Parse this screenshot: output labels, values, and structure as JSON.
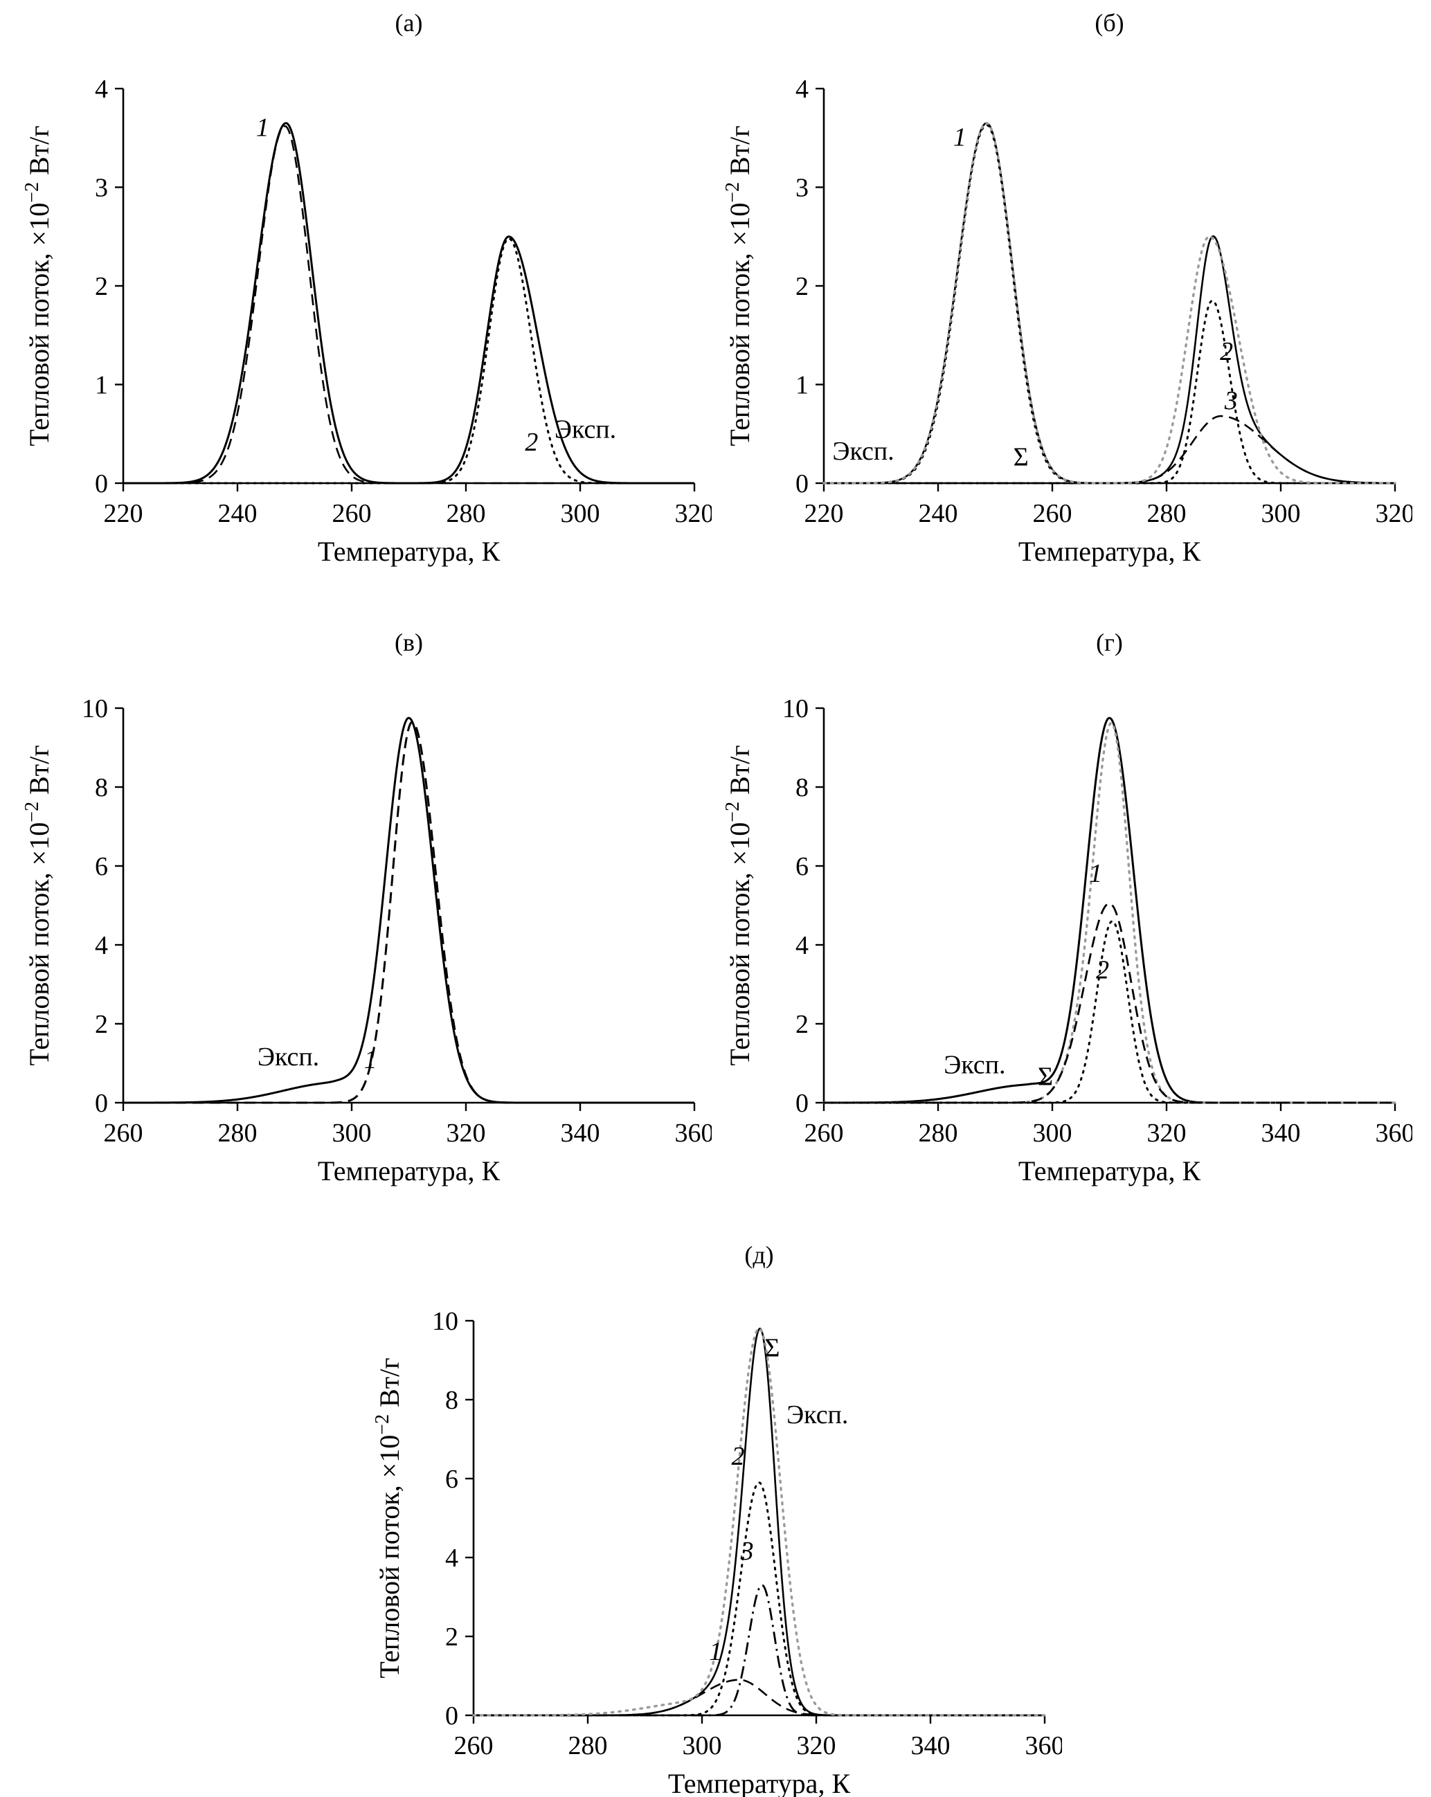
{
  "figure": {
    "background": "#ffffff",
    "curve_color": "#000000",
    "experimental_overlay_color": "#9a9a9a"
  },
  "chart_data": [
    {
      "id": "a",
      "panel_label": "(а)",
      "type": "line",
      "xlabel": "Температура, К",
      "ylabel": "Тепловой поток, ×10⁻² Вт/г",
      "xlim": [
        220,
        320
      ],
      "ylim": [
        0,
        4
      ],
      "xticks": [
        220,
        240,
        260,
        280,
        300,
        320
      ],
      "yticks": [
        0,
        1,
        2,
        3,
        4
      ],
      "series": [
        {
          "name": "Эксп.",
          "style": "solid",
          "color": "#000000",
          "width": 3,
          "peaks": [
            {
              "center": 248.5,
              "height": 3.65,
              "sigma_l": 5.0,
              "sigma_r": 4.5
            },
            {
              "center": 287.5,
              "height": 2.5,
              "sigma_l": 3.8,
              "sigma_r": 5.0
            }
          ]
        },
        {
          "name": "1",
          "style": "dashed",
          "color": "#000000",
          "width": 2.6,
          "peaks": [
            {
              "center": 248.3,
              "height": 3.62,
              "sigma_l": 4.6,
              "sigma_r": 4.2
            }
          ]
        },
        {
          "name": "2",
          "style": "dotted",
          "color": "#000000",
          "width": 3,
          "peaks": [
            {
              "center": 287.5,
              "height": 2.48,
              "sigma_l": 3.5,
              "sigma_r": 3.9
            }
          ]
        }
      ],
      "annotations": [
        {
          "text": "1",
          "x": 244.4,
          "y": 3.52,
          "italic": true
        },
        {
          "text": "2",
          "x": 291.5,
          "y": 0.33,
          "italic": true
        },
        {
          "text": "Эксп.",
          "x": 295.5,
          "y": 0.46,
          "italic": false,
          "anchor": "start"
        }
      ]
    },
    {
      "id": "b",
      "panel_label": "(б)",
      "type": "line",
      "xlabel": "Температура, К",
      "ylabel": "Тепловой поток, ×10⁻² Вт/г",
      "xlim": [
        220,
        320
      ],
      "ylim": [
        0,
        4
      ],
      "xticks": [
        220,
        240,
        260,
        280,
        300,
        320
      ],
      "yticks": [
        0,
        1,
        2,
        3,
        4
      ],
      "series": [
        {
          "name": "1",
          "style": "dotted",
          "color": "#000000",
          "width": 2.6,
          "peaks": [
            {
              "center": 248.5,
              "height": 3.63,
              "sigma_l": 4.9,
              "sigma_r": 4.4
            }
          ]
        },
        {
          "name": "2",
          "style": "dotted",
          "color": "#000000",
          "width": 3,
          "peaks": [
            {
              "center": 288.0,
              "height": 1.85,
              "sigma_l": 2.6,
              "sigma_r": 3.0
            }
          ]
        },
        {
          "name": "3",
          "style": "dashed",
          "color": "#000000",
          "width": 2.6,
          "peaks": [
            {
              "center": 289.5,
              "height": 0.68,
              "sigma_l": 5.0,
              "sigma_r": 8.0
            }
          ]
        },
        {
          "name": "Σ",
          "style": "solid",
          "color": "#000000",
          "width": 2.6,
          "peaks": [
            {
              "center": 248.5,
              "height": 3.65,
              "sigma_l": 5.0,
              "sigma_r": 4.5
            },
            {
              "center": 288.0,
              "height": 1.85,
              "sigma_l": 2.6,
              "sigma_r": 3.0
            },
            {
              "center": 289.5,
              "height": 0.68,
              "sigma_l": 5.0,
              "sigma_r": 8.0
            }
          ]
        },
        {
          "name": "Эксп.",
          "style": "dotted",
          "color": "#9a9a9a",
          "width": 3.4,
          "peaks": [
            {
              "center": 248.5,
              "height": 3.65,
              "sigma_l": 5.0,
              "sigma_r": 4.5
            },
            {
              "center": 287.5,
              "height": 2.5,
              "sigma_l": 3.8,
              "sigma_r": 5.0
            }
          ]
        }
      ],
      "annotations": [
        {
          "text": "1",
          "x": 243.8,
          "y": 3.42,
          "italic": true
        },
        {
          "text": "2",
          "x": 290.5,
          "y": 1.25,
          "italic": true
        },
        {
          "text": "3",
          "x": 291.3,
          "y": 0.75,
          "italic": true
        },
        {
          "text": "Эксп.",
          "x": 221.5,
          "y": 0.24,
          "italic": false,
          "anchor": "start"
        },
        {
          "text": "Σ",
          "x": 254.5,
          "y": 0.18,
          "italic": false
        }
      ]
    },
    {
      "id": "v",
      "panel_label": "(в)",
      "type": "line",
      "xlabel": "Температура, К",
      "ylabel": "Тепловой поток, ×10⁻² Вт/г",
      "xlim": [
        260,
        360
      ],
      "ylim": [
        0,
        10
      ],
      "xticks": [
        260,
        280,
        300,
        320,
        340,
        360
      ],
      "yticks": [
        0,
        2,
        4,
        6,
        8,
        10
      ],
      "series": [
        {
          "name": "Эксп.",
          "style": "solid",
          "color": "#000000",
          "width": 3,
          "peaks": [
            {
              "center": 310.0,
              "height": 9.75,
              "sigma_l": 4.0,
              "sigma_r": 4.3
            },
            {
              "center": 297.0,
              "height": 0.5,
              "sigma_l": 9.0,
              "sigma_r": 4.0
            }
          ]
        },
        {
          "name": "1",
          "style": "dashed",
          "color": "#000000",
          "width": 3,
          "peaks": [
            {
              "center": 310.6,
              "height": 9.65,
              "sigma_l": 3.4,
              "sigma_r": 4.1
            }
          ]
        }
      ],
      "annotations": [
        {
          "text": "Эксп.",
          "x": 283.5,
          "y": 0.95,
          "italic": false,
          "anchor": "start"
        },
        {
          "text": "1",
          "x": 303.3,
          "y": 0.88,
          "italic": true
        }
      ]
    },
    {
      "id": "g",
      "panel_label": "(г)",
      "type": "line",
      "xlabel": "Температура, К",
      "ylabel": "Тепловой поток, ×10⁻² Вт/г",
      "xlim": [
        260,
        360
      ],
      "ylim": [
        0,
        10
      ],
      "xticks": [
        260,
        280,
        300,
        320,
        340,
        360
      ],
      "yticks": [
        0,
        2,
        4,
        6,
        8,
        10
      ],
      "series": [
        {
          "name": "Эксп.",
          "style": "solid",
          "color": "#000000",
          "width": 3,
          "peaks": [
            {
              "center": 310.0,
              "height": 9.75,
              "sigma_l": 4.0,
              "sigma_r": 4.2
            },
            {
              "center": 296.0,
              "height": 0.45,
              "sigma_l": 9.0,
              "sigma_r": 4.0
            }
          ]
        },
        {
          "name": "Σ",
          "style": "dotted",
          "color": "#9a9a9a",
          "width": 3.4,
          "peaks": [
            {
              "center": 310.0,
              "height": 5.05,
              "sigma_l": 4.3,
              "sigma_r": 3.8
            },
            {
              "center": 310.5,
              "height": 4.6,
              "sigma_l": 2.7,
              "sigma_r": 2.7
            }
          ]
        },
        {
          "name": "1",
          "style": "dashed",
          "color": "#000000",
          "width": 2.8,
          "peaks": [
            {
              "center": 310.0,
              "height": 5.05,
              "sigma_l": 4.3,
              "sigma_r": 3.8
            }
          ]
        },
        {
          "name": "2",
          "style": "dotted",
          "color": "#000000",
          "width": 3,
          "peaks": [
            {
              "center": 310.5,
              "height": 4.6,
              "sigma_l": 2.7,
              "sigma_r": 2.7
            }
          ]
        }
      ],
      "annotations": [
        {
          "text": "1",
          "x": 307.6,
          "y": 5.6,
          "italic": true
        },
        {
          "text": "2",
          "x": 308.8,
          "y": 3.15,
          "italic": true
        },
        {
          "text": "Эксп.",
          "x": 281.0,
          "y": 0.75,
          "italic": false,
          "anchor": "start"
        },
        {
          "text": "Σ",
          "x": 298.8,
          "y": 0.45,
          "italic": false
        }
      ]
    },
    {
      "id": "d",
      "panel_label": "(д)",
      "type": "line",
      "xlabel": "Температура, К",
      "ylabel": "Тепловой поток, ×10⁻² Вт/г",
      "xlim": [
        260,
        360
      ],
      "ylim": [
        0,
        10
      ],
      "xticks": [
        260,
        280,
        300,
        320,
        340,
        360
      ],
      "yticks": [
        0,
        2,
        4,
        6,
        8,
        10
      ],
      "series": [
        {
          "name": "Σ",
          "style": "solid",
          "color": "#000000",
          "width": 2.6,
          "peaks": [
            {
              "center": 306.5,
              "height": 0.9,
              "sigma_l": 6.5,
              "sigma_r": 4.5
            },
            {
              "center": 310.0,
              "height": 5.9,
              "sigma_l": 3.2,
              "sigma_r": 2.9
            },
            {
              "center": 310.5,
              "height": 3.3,
              "sigma_l": 2.3,
              "sigma_r": 2.2
            }
          ]
        },
        {
          "name": "2",
          "style": "dotted",
          "color": "#000000",
          "width": 3,
          "peaks": [
            {
              "center": 310.0,
              "height": 5.9,
              "sigma_l": 3.2,
              "sigma_r": 2.9
            }
          ]
        },
        {
          "name": "3",
          "style": "dashdot",
          "color": "#000000",
          "width": 2.8,
          "peaks": [
            {
              "center": 310.5,
              "height": 3.3,
              "sigma_l": 2.3,
              "sigma_r": 2.2
            }
          ]
        },
        {
          "name": "1",
          "style": "dashed",
          "color": "#000000",
          "width": 2.6,
          "peaks": [
            {
              "center": 306.5,
              "height": 0.9,
              "sigma_l": 6.5,
              "sigma_r": 4.5
            }
          ]
        },
        {
          "name": "Эксп.",
          "style": "dotted",
          "color": "#9a9a9a",
          "width": 3.4,
          "peaks": [
            {
              "center": 310.0,
              "height": 9.8,
              "sigma_l": 3.8,
              "sigma_r": 3.7
            },
            {
              "center": 300.0,
              "height": 0.35,
              "sigma_l": 9.0,
              "sigma_r": 3.0
            }
          ]
        }
      ],
      "annotations": [
        {
          "text": "Σ",
          "x": 312.3,
          "y": 9.1,
          "italic": false
        },
        {
          "text": "Эксп.",
          "x": 314.8,
          "y": 7.4,
          "italic": false,
          "anchor": "start"
        },
        {
          "text": "2",
          "x": 306.3,
          "y": 6.35,
          "italic": true
        },
        {
          "text": "3",
          "x": 307.9,
          "y": 3.95,
          "italic": true
        },
        {
          "text": "1",
          "x": 302.4,
          "y": 1.4,
          "italic": true
        }
      ]
    }
  ]
}
